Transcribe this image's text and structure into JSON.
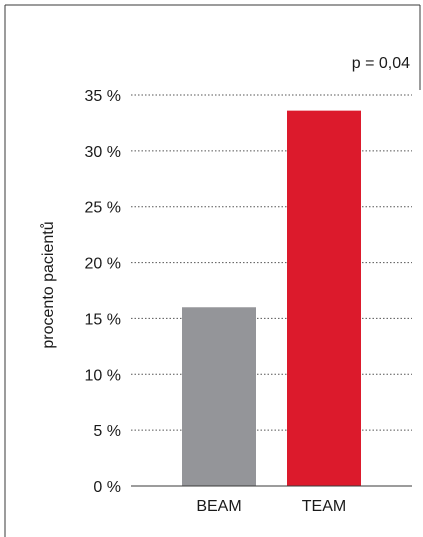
{
  "chart_data": {
    "type": "bar",
    "categories": [
      "BEAM",
      "TEAM"
    ],
    "values": [
      16,
      33.6
    ],
    "bar_colors": [
      "#949599",
      "#dc1a2c"
    ],
    "ylabel": "procento pacientů",
    "xlabel": "",
    "ylim": [
      0,
      35
    ],
    "yticks": [
      0,
      5,
      10,
      15,
      20,
      25,
      30,
      35
    ],
    "ytick_labels": [
      "0 %",
      "5 %",
      "10 %",
      "15 %",
      "20 %",
      "25 %",
      "30 %",
      "35 %"
    ],
    "grid": "dotted horizontal",
    "annotation": "p = 0,04"
  }
}
